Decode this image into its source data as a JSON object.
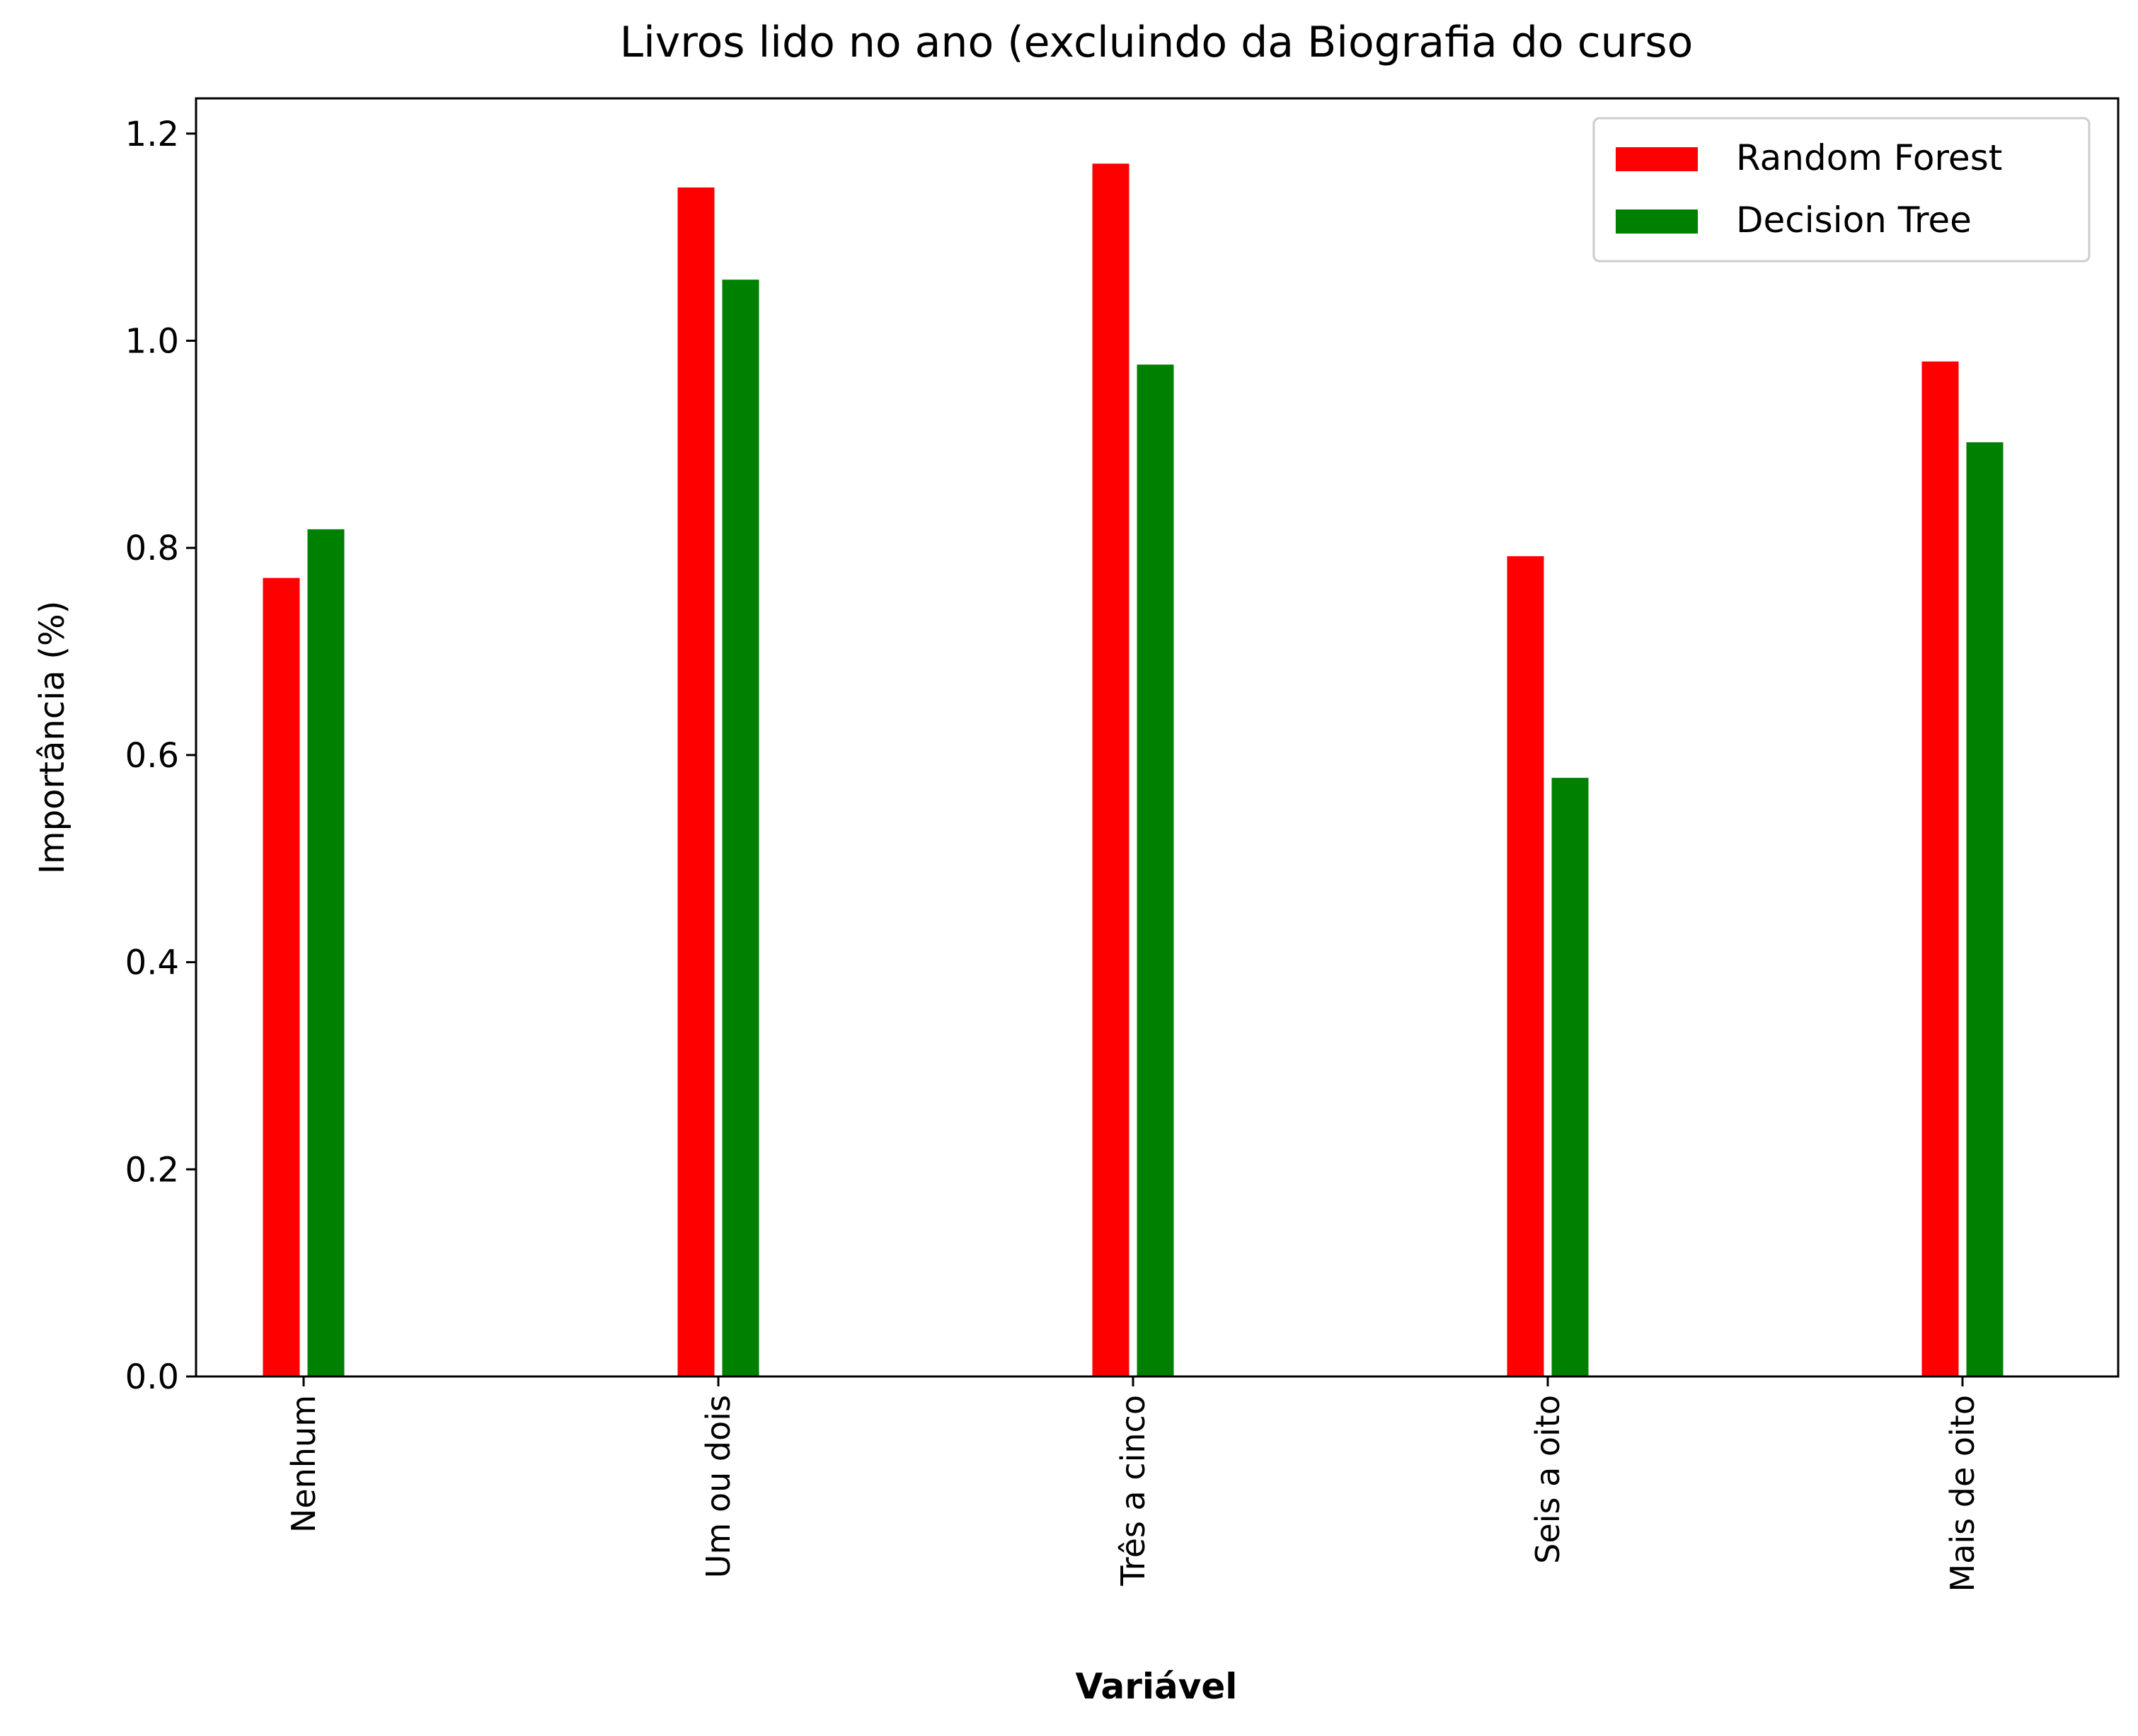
{
  "chart_data": {
    "type": "bar",
    "title": "Livros lido no ano (excluindo da Biografia do curso",
    "xlabel": "Variável",
    "ylabel": "Importância (%)",
    "categories": [
      "Nenhum",
      "Um ou dois",
      "Três a cinco",
      "Seis a oito",
      "Mais de oito"
    ],
    "series": [
      {
        "name": "Random Forest",
        "color": "#ff0000",
        "values": [
          0.772,
          1.149,
          1.172,
          0.793,
          0.981
        ]
      },
      {
        "name": "Decision Tree",
        "color": "#008000",
        "values": [
          0.819,
          1.06,
          0.978,
          0.579,
          0.903
        ]
      }
    ],
    "ylim": [
      0,
      1.234
    ],
    "yticks": [
      0.0,
      0.2,
      0.4,
      0.6,
      0.8,
      1.0,
      1.2
    ],
    "ytick_labels": [
      "0.0",
      "0.2",
      "0.4",
      "0.6",
      "0.8",
      "1.0",
      "1.2"
    ],
    "legend_position": "top-right",
    "grid": false
  }
}
